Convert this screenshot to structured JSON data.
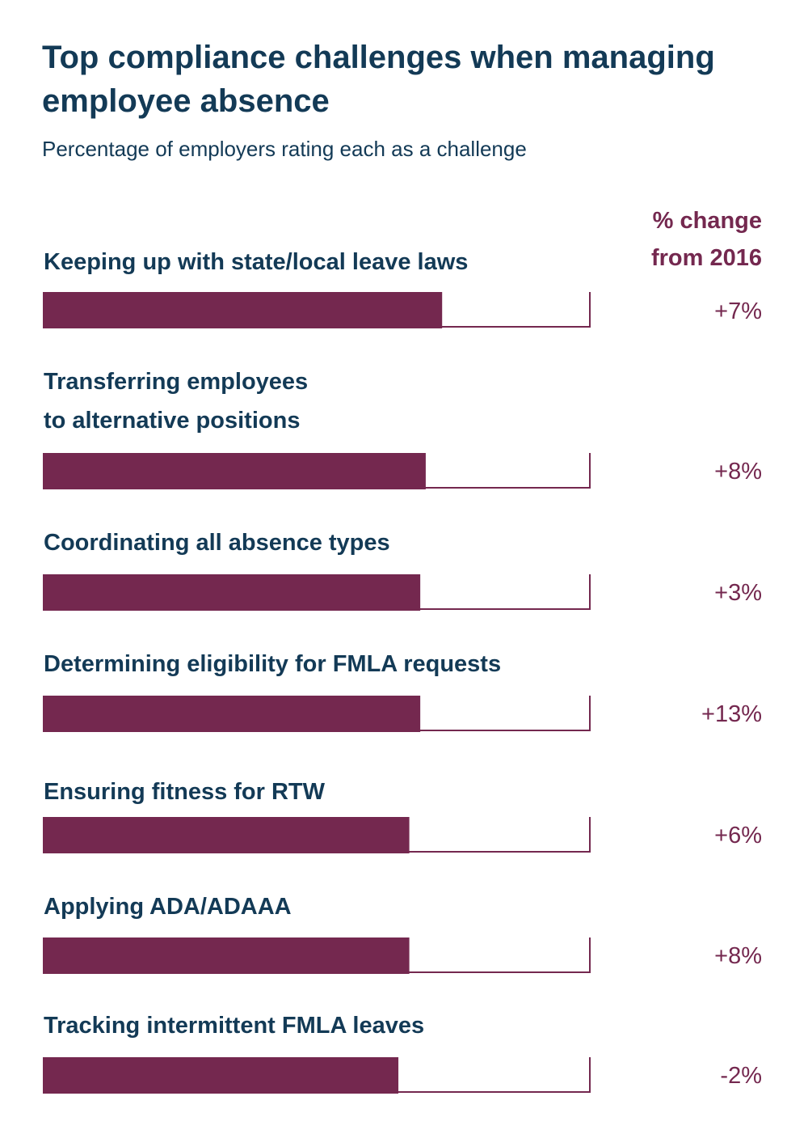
{
  "chart_data": {
    "type": "bar",
    "orientation": "horizontal",
    "title": "Top compliance challenges when managing\nemployee absence",
    "subtitle": "Percentage of employers rating each as a challenge",
    "change_header": "% change\nfrom 2016",
    "categories": [
      "Keeping up with state/local leave laws",
      "Transferring employees\nto alternative positions",
      "Coordinating all absence types",
      "Determining eligibility for FMLA requests",
      "Ensuring fitness for RTW",
      "Applying ADA/ADAAA",
      "Tracking intermittent FMLA leaves"
    ],
    "values": [
      73,
      70,
      69,
      69,
      67,
      67,
      65
    ],
    "xlim": [
      0,
      100
    ],
    "changes": [
      "+7%",
      "+8%",
      "+3%",
      "+13%",
      "+6%",
      "+8%",
      "-2%"
    ],
    "colors": {
      "bar": "#74284f",
      "track": "#74284f",
      "text": "#133a56",
      "accent": "#74284f"
    }
  }
}
